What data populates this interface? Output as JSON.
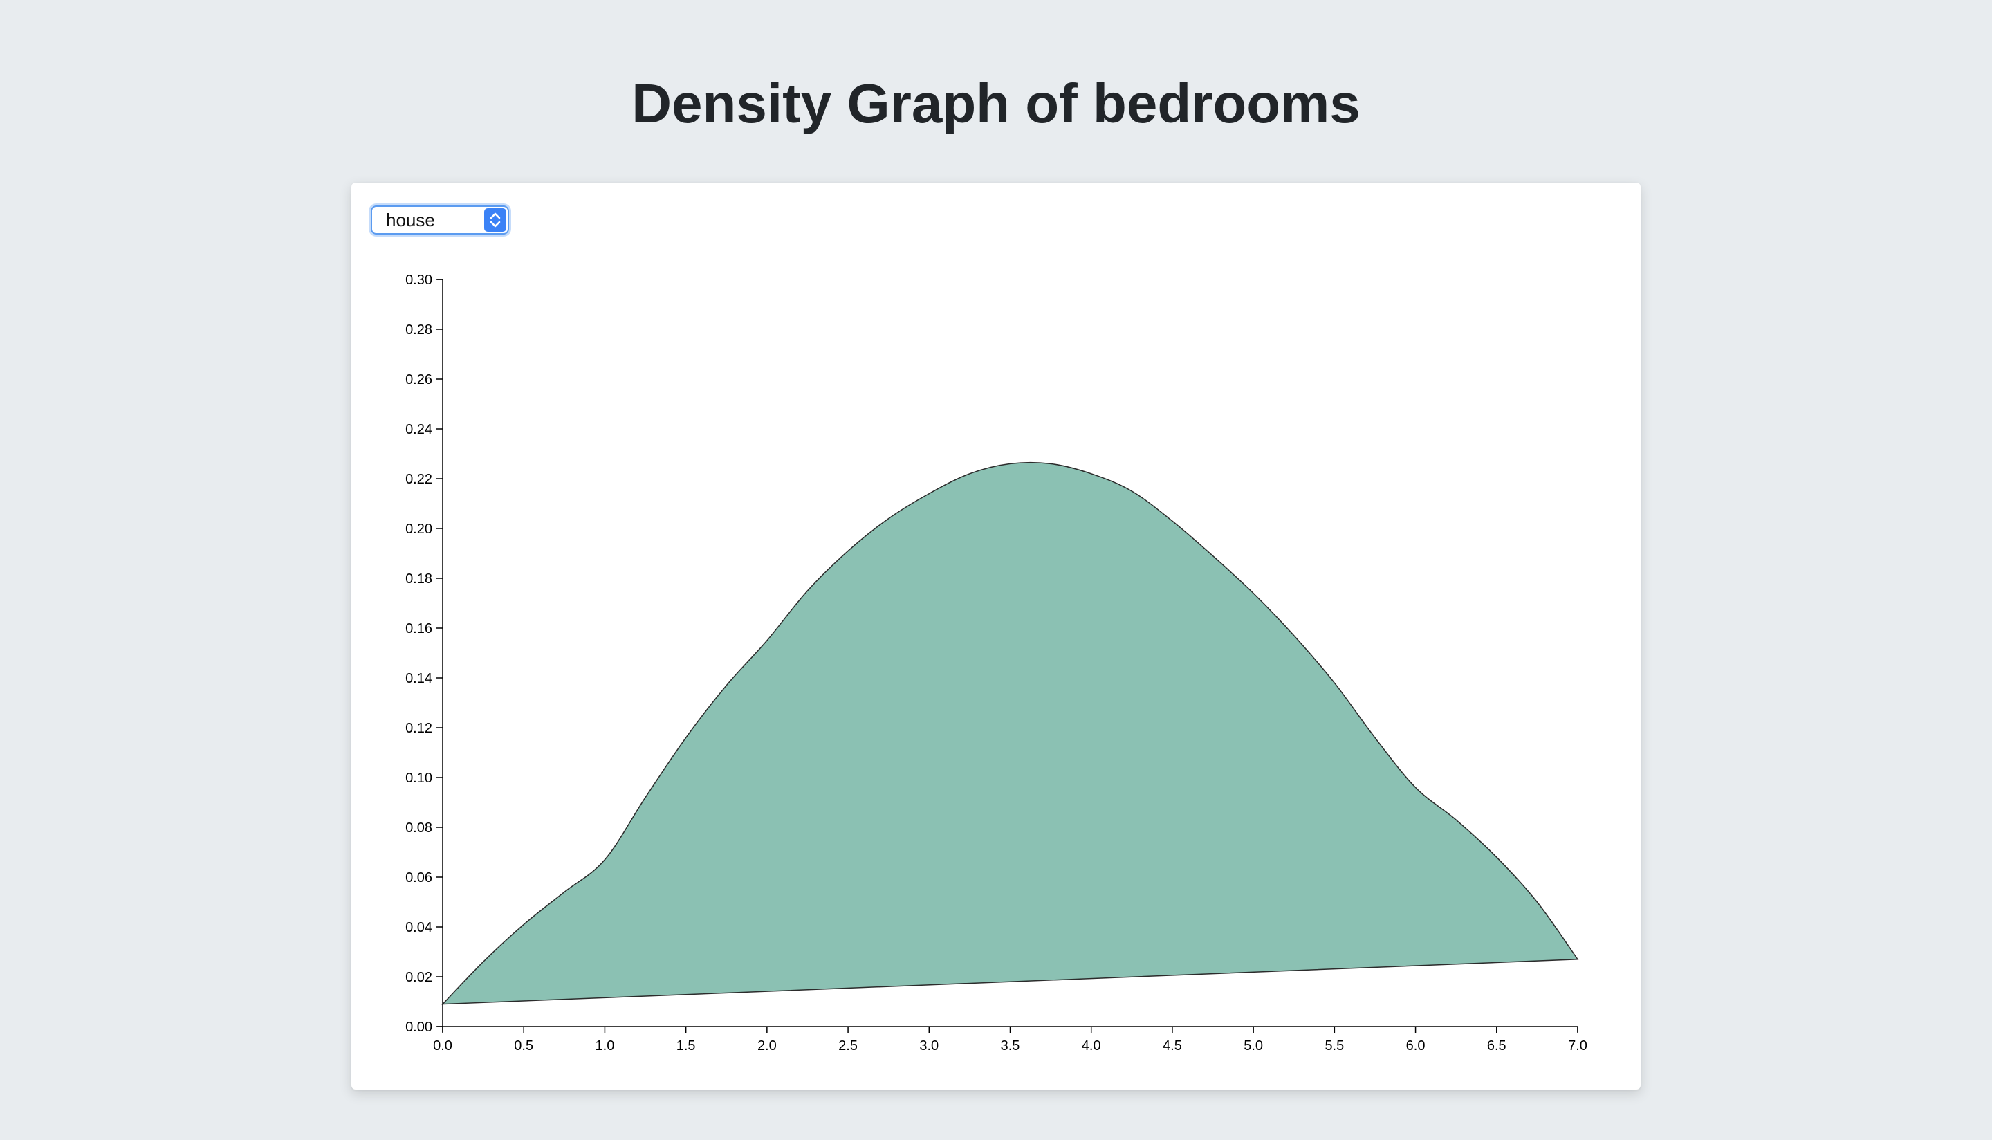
{
  "page": {
    "title": "Density Graph of bedrooms"
  },
  "controls": {
    "category_select": {
      "selected": "house"
    }
  },
  "colors": {
    "area_fill": "#8bc1b3",
    "area_stroke": "#2b2b2b",
    "axis": "#000000",
    "accent": "#3b82f6"
  },
  "chart_data": {
    "type": "area",
    "title": "Density Graph of bedrooms",
    "xlabel": "",
    "ylabel": "",
    "xlim": [
      0,
      7
    ],
    "ylim": [
      0,
      0.3
    ],
    "grid": false,
    "x_ticks": [
      "0.0",
      "0.5",
      "1.0",
      "1.5",
      "2.0",
      "2.5",
      "3.0",
      "3.5",
      "4.0",
      "4.5",
      "5.0",
      "5.5",
      "6.0",
      "6.5",
      "7.0"
    ],
    "y_ticks": [
      "0.00",
      "0.02",
      "0.04",
      "0.06",
      "0.08",
      "0.10",
      "0.12",
      "0.14",
      "0.16",
      "0.18",
      "0.20",
      "0.22",
      "0.24",
      "0.26",
      "0.28",
      "0.30"
    ],
    "series": [
      {
        "x": [
          0,
          0.25,
          0.5,
          0.75,
          1.0,
          1.25,
          1.5,
          1.75,
          2.0,
          2.25,
          2.5,
          2.75,
          3.0,
          3.25,
          3.5,
          3.75,
          4.0,
          4.25,
          4.5,
          4.75,
          5.0,
          5.25,
          5.5,
          5.75,
          6.0,
          6.25,
          6.5,
          6.75,
          7.0
        ],
        "y": [
          0.009,
          0.026,
          0.041,
          0.054,
          0.067,
          0.092,
          0.116,
          0.137,
          0.155,
          0.175,
          0.191,
          0.204,
          0.214,
          0.222,
          0.226,
          0.226,
          0.222,
          0.215,
          0.203,
          0.189,
          0.174,
          0.157,
          0.138,
          0.116,
          0.096,
          0.083,
          0.068,
          0.05,
          0.027
        ]
      }
    ]
  }
}
